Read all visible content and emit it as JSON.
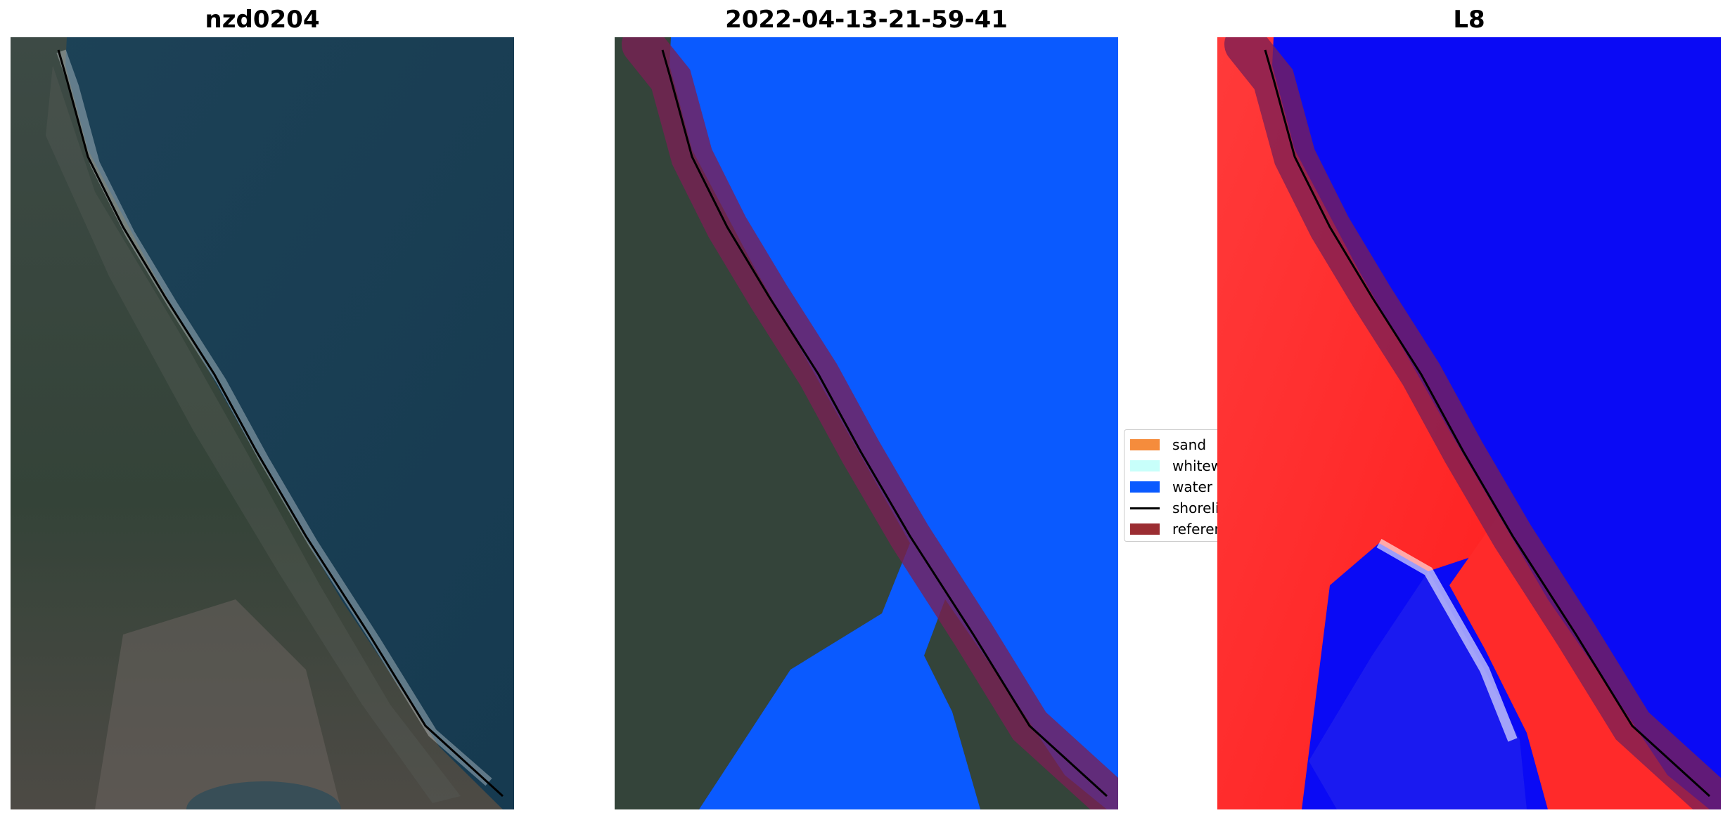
{
  "panels": [
    {
      "title": "nzd0204"
    },
    {
      "title": "2022-04-13-21-59-41"
    },
    {
      "title": "L8"
    }
  ],
  "legend": {
    "items": [
      {
        "label": "sand",
        "color": "#f58c3c",
        "kind": "patch"
      },
      {
        "label": "whitewater",
        "color": "#c8fffa",
        "kind": "patch"
      },
      {
        "label": "water",
        "color": "#0a5aff",
        "kind": "patch"
      },
      {
        "label": "shoreline",
        "color": "#000000",
        "kind": "line"
      },
      {
        "label": "reference shoreline buffer",
        "color": "#9b2d32",
        "kind": "patch"
      }
    ]
  },
  "colors": {
    "ocean": "#173c52",
    "land": "#34443a",
    "classified_water": "#0a5aff",
    "buffer": "#7a1f3f",
    "index_water": "#0a0af5",
    "index_land": "#ff2a2a"
  }
}
